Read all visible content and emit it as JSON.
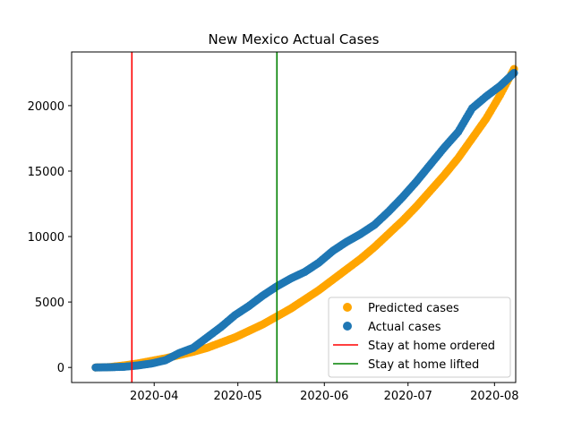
{
  "chart_data": {
    "type": "scatter",
    "title": "New Mexico Actual Cases",
    "xlabel": "",
    "ylabel": "",
    "x_axis": {
      "start_date": "2020-03-11",
      "range_days": [
        -8.6,
        150.6
      ],
      "ticks": [
        {
          "day": 21,
          "label": "2020-04"
        },
        {
          "day": 51,
          "label": "2020-05"
        },
        {
          "day": 82,
          "label": "2020-06"
        },
        {
          "day": 112,
          "label": "2020-07"
        },
        {
          "day": 143,
          "label": "2020-08"
        }
      ]
    },
    "y_axis": {
      "range": [
        -1150,
        24100
      ],
      "ticks": [
        0,
        5000,
        10000,
        15000,
        20000,
        25000
      ]
    },
    "series": [
      {
        "name": "Predicted cases",
        "color": "#ffa500",
        "marker": "circle",
        "x": [
          0,
          5,
          10,
          15,
          20,
          25,
          30,
          35,
          40,
          45,
          50,
          55,
          60,
          65,
          70,
          75,
          80,
          85,
          90,
          95,
          100,
          105,
          110,
          115,
          120,
          125,
          130,
          135,
          140,
          145,
          150
        ],
        "y": [
          0,
          30,
          150,
          300,
          500,
          700,
          950,
          1200,
          1500,
          1900,
          2300,
          2800,
          3300,
          3900,
          4500,
          5200,
          5900,
          6700,
          7500,
          8300,
          9200,
          10200,
          11200,
          12300,
          13500,
          14700,
          16000,
          17500,
          19000,
          20800,
          22800
        ]
      },
      {
        "name": "Actual cases",
        "color": "#1f77b4",
        "marker": "circle",
        "x": [
          0,
          5,
          10,
          15,
          20,
          25,
          30,
          35,
          40,
          45,
          50,
          55,
          60,
          65,
          70,
          75,
          80,
          85,
          90,
          95,
          100,
          105,
          110,
          115,
          120,
          125,
          130,
          135,
          140,
          145,
          150
        ],
        "y": [
          0,
          20,
          50,
          150,
          300,
          550,
          1100,
          1500,
          2300,
          3100,
          4000,
          4700,
          5500,
          6200,
          6800,
          7300,
          8000,
          8900,
          9600,
          10200,
          10900,
          11900,
          13000,
          14200,
          15500,
          16800,
          18000,
          19800,
          20700,
          21500,
          22500
        ]
      }
    ],
    "vlines": [
      {
        "name": "Stay at home ordered",
        "day": 13,
        "color": "#ff0000"
      },
      {
        "name": "Stay at home lifted",
        "day": 65,
        "color": "#008000"
      }
    ],
    "legend": {
      "placement": "lower-right",
      "entries": [
        "Predicted cases",
        "Actual cases",
        "Stay at home ordered",
        "Stay at home lifted"
      ]
    },
    "grid": false
  }
}
